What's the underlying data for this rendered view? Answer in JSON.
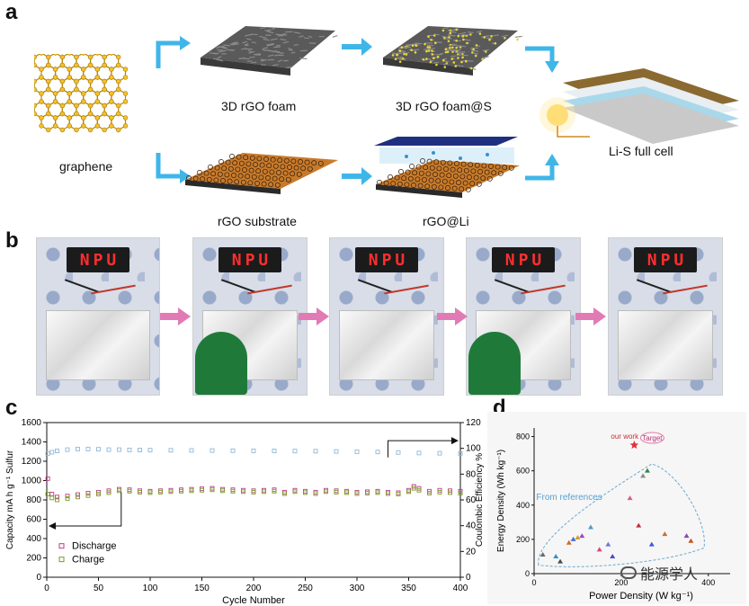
{
  "panel_a": {
    "letter": "a",
    "graphene_label": "graphene",
    "foam_label": "3D rGO foam",
    "foam_s_label": "3D rGO foam@S",
    "substrate_label": "rGO substrate",
    "rgo_li_label": "rGO@Li",
    "full_cell_label": "Li-S full cell",
    "arrow_color": "#3fb6e8"
  },
  "panel_b": {
    "letter": "b",
    "photos": [
      {
        "sign": "NPU",
        "lit": true,
        "glove": false
      },
      {
        "sign": "NPU",
        "lit": true,
        "glove": true
      },
      {
        "sign": "NPU",
        "lit": true,
        "glove": false
      },
      {
        "sign": "NPU",
        "lit": true,
        "glove": true
      },
      {
        "sign": "NPU",
        "lit": true,
        "glove": false
      }
    ],
    "arrow_color": "#e27bb5"
  },
  "panel_c": {
    "letter": "c",
    "chart_data": {
      "type": "scatter",
      "xlabel": "Cycle Number",
      "ylabel_left": "Capacity mA h g⁻¹ Sulfur",
      "ylabel_right": "Coulombic Efficiency %",
      "xlim": [
        0,
        400
      ],
      "ylim_left": [
        0,
        1600
      ],
      "ylim_right": [
        0,
        120
      ],
      "x_ticks": [
        0,
        50,
        100,
        150,
        200,
        250,
        300,
        350,
        400
      ],
      "y_ticks_left": [
        0,
        200,
        400,
        600,
        800,
        1000,
        1200,
        1400,
        1600
      ],
      "y_ticks_right": [
        0,
        20,
        40,
        60,
        80,
        100,
        120
      ],
      "legend": [
        "Discharge",
        "Charge"
      ],
      "legend_position": "bottom-left",
      "series": [
        {
          "name": "Discharge",
          "axis": "left",
          "color": "#c0398d",
          "x": [
            1,
            5,
            10,
            20,
            30,
            40,
            50,
            60,
            70,
            80,
            90,
            100,
            110,
            120,
            130,
            140,
            150,
            160,
            170,
            180,
            190,
            200,
            210,
            220,
            230,
            240,
            250,
            260,
            270,
            280,
            290,
            300,
            310,
            320,
            330,
            340,
            350,
            355,
            360,
            370,
            380,
            390,
            400
          ],
          "y": [
            1020,
            860,
            830,
            840,
            855,
            870,
            880,
            895,
            910,
            905,
            895,
            890,
            895,
            900,
            905,
            910,
            915,
            920,
            910,
            905,
            900,
            895,
            900,
            905,
            880,
            900,
            890,
            880,
            900,
            895,
            890,
            880,
            885,
            890,
            880,
            875,
            900,
            940,
            920,
            890,
            900,
            895,
            890
          ]
        },
        {
          "name": "Charge",
          "axis": "left",
          "color": "#7a9b1f",
          "x": [
            1,
            5,
            10,
            20,
            30,
            40,
            50,
            60,
            70,
            80,
            90,
            100,
            110,
            120,
            130,
            140,
            150,
            160,
            170,
            180,
            190,
            200,
            210,
            220,
            230,
            240,
            250,
            260,
            270,
            280,
            290,
            300,
            310,
            320,
            330,
            340,
            350,
            355,
            360,
            370,
            380,
            390,
            400
          ],
          "y": [
            860,
            820,
            800,
            815,
            830,
            845,
            860,
            875,
            895,
            890,
            880,
            875,
            880,
            885,
            890,
            895,
            900,
            905,
            895,
            890,
            885,
            880,
            885,
            890,
            865,
            885,
            875,
            865,
            885,
            880,
            875,
            865,
            870,
            875,
            865,
            860,
            885,
            920,
            900,
            870,
            880,
            875,
            870
          ]
        },
        {
          "name": "Coulombic Efficiency",
          "axis": "right",
          "color": "#8fb8d8",
          "x": [
            1,
            5,
            10,
            20,
            30,
            40,
            50,
            60,
            70,
            80,
            90,
            100,
            120,
            140,
            160,
            180,
            200,
            220,
            240,
            260,
            280,
            300,
            320,
            340,
            360,
            380,
            400
          ],
          "y": [
            96,
            97,
            98,
            99,
            99.5,
            99.5,
            99.3,
            99,
            99,
            98.8,
            98.7,
            98.6,
            98.5,
            98.4,
            98.3,
            98.2,
            98.1,
            98,
            97.9,
            97.8,
            97.6,
            97.4,
            97.2,
            96.8,
            96.4,
            96.2,
            96
          ]
        }
      ]
    }
  },
  "panel_d": {
    "letter": "d",
    "chart_data": {
      "type": "scatter",
      "xlabel": "Power Density (W kg⁻¹)",
      "ylabel": "Energy Density (Wh kg⁻¹)",
      "xlim": [
        0,
        450
      ],
      "ylim": [
        0,
        850
      ],
      "x_ticks": [
        0,
        200,
        400
      ],
      "y_ticks": [
        0,
        200,
        400,
        600,
        800
      ],
      "annotations": [
        "our work",
        "Target",
        "From references"
      ],
      "our_work": {
        "x": 230,
        "y": 750,
        "color": "#e0303a"
      },
      "references": [
        {
          "x": 20,
          "y": 110,
          "color": "#6a6a6a"
        },
        {
          "x": 50,
          "y": 100,
          "color": "#3a8fd0"
        },
        {
          "x": 60,
          "y": 70,
          "color": "#4a4a4a"
        },
        {
          "x": 80,
          "y": 180,
          "color": "#d46a2a"
        },
        {
          "x": 90,
          "y": 200,
          "color": "#4a6fd0"
        },
        {
          "x": 100,
          "y": 210,
          "color": "#d0a030"
        },
        {
          "x": 110,
          "y": 220,
          "color": "#9a4ac0"
        },
        {
          "x": 130,
          "y": 270,
          "color": "#4aa0c0"
        },
        {
          "x": 150,
          "y": 140,
          "color": "#d04a7a"
        },
        {
          "x": 170,
          "y": 170,
          "color": "#6a7ad0"
        },
        {
          "x": 180,
          "y": 100,
          "color": "#4a4ad0"
        },
        {
          "x": 220,
          "y": 440,
          "color": "#e05a8a"
        },
        {
          "x": 240,
          "y": 280,
          "color": "#c03040"
        },
        {
          "x": 250,
          "y": 570,
          "color": "#8a8a8a"
        },
        {
          "x": 260,
          "y": 600,
          "color": "#2a8a4a"
        },
        {
          "x": 270,
          "y": 170,
          "color": "#3a5ad0"
        },
        {
          "x": 300,
          "y": 230,
          "color": "#d06a30"
        },
        {
          "x": 350,
          "y": 220,
          "color": "#8a4ab0"
        },
        {
          "x": 360,
          "y": 190,
          "color": "#c05a20"
        }
      ]
    }
  },
  "watermark": "能源学人"
}
